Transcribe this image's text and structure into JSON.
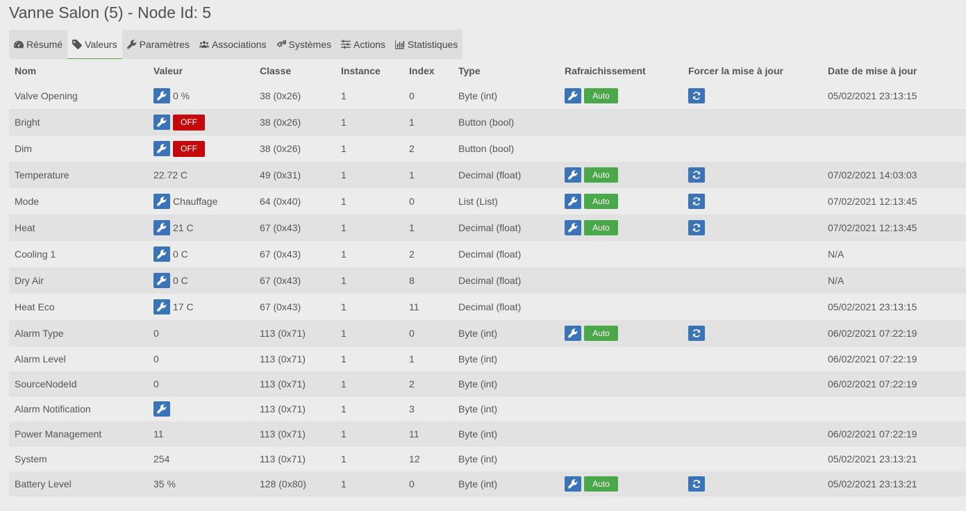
{
  "page_title": "Vanne Salon (5) - Node Id: 5",
  "tabs": [
    {
      "label": "Résumé",
      "icon": "dashboard-icon",
      "active": false
    },
    {
      "label": "Valeurs",
      "icon": "tag-icon",
      "active": true
    },
    {
      "label": "Paramètres",
      "icon": "wrench-icon",
      "active": false
    },
    {
      "label": "Associations",
      "icon": "users-icon",
      "active": false
    },
    {
      "label": "Systèmes",
      "icon": "cogs-icon",
      "active": false
    },
    {
      "label": "Actions",
      "icon": "sliders-icon",
      "active": false
    },
    {
      "label": "Statistiques",
      "icon": "bar-chart-icon",
      "active": false
    }
  ],
  "columns": [
    "Nom",
    "Valeur",
    "Classe",
    "Instance",
    "Index",
    "Type",
    "Rafraichissement",
    "Forcer la mise à jour",
    "Date de mise à jour"
  ],
  "auto_label": "Auto",
  "colors": {
    "primary": "#3a73b8",
    "success": "#4aa84a",
    "danger": "#c4080b"
  },
  "rows": [
    {
      "name": "Valve Opening",
      "editable": true,
      "value": "0 %",
      "badge": "",
      "class": "38 (0x26)",
      "instance": "1",
      "index": "0",
      "type": "Byte (int)",
      "refresh": true,
      "force": true,
      "date": "05/02/2021 23:13:15"
    },
    {
      "name": "Bright",
      "editable": true,
      "value": "",
      "badge": "OFF",
      "class": "38 (0x26)",
      "instance": "1",
      "index": "1",
      "type": "Button (bool)",
      "refresh": false,
      "force": false,
      "date": ""
    },
    {
      "name": "Dim",
      "editable": true,
      "value": "",
      "badge": "OFF",
      "class": "38 (0x26)",
      "instance": "1",
      "index": "2",
      "type": "Button (bool)",
      "refresh": false,
      "force": false,
      "date": ""
    },
    {
      "name": "Temperature",
      "editable": false,
      "value": "22.72 C",
      "badge": "",
      "class": "49 (0x31)",
      "instance": "1",
      "index": "1",
      "type": "Decimal (float)",
      "refresh": true,
      "force": true,
      "date": "07/02/2021 14:03:03"
    },
    {
      "name": "Mode",
      "editable": true,
      "value": "Chauffage",
      "badge": "",
      "class": "64 (0x40)",
      "instance": "1",
      "index": "0",
      "type": "List (List)",
      "refresh": true,
      "force": true,
      "date": "07/02/2021 12:13:45"
    },
    {
      "name": "Heat",
      "editable": true,
      "value": "21 C",
      "badge": "",
      "class": "67 (0x43)",
      "instance": "1",
      "index": "1",
      "type": "Decimal (float)",
      "refresh": true,
      "force": true,
      "date": "07/02/2021 12:13:45"
    },
    {
      "name": "Cooling 1",
      "editable": true,
      "value": "0 C",
      "badge": "",
      "class": "67 (0x43)",
      "instance": "1",
      "index": "2",
      "type": "Decimal (float)",
      "refresh": false,
      "force": false,
      "date": "N/A"
    },
    {
      "name": "Dry Air",
      "editable": true,
      "value": "0 C",
      "badge": "",
      "class": "67 (0x43)",
      "instance": "1",
      "index": "8",
      "type": "Decimal (float)",
      "refresh": false,
      "force": false,
      "date": "N/A"
    },
    {
      "name": "Heat Eco",
      "editable": true,
      "value": "17 C",
      "badge": "",
      "class": "67 (0x43)",
      "instance": "1",
      "index": "11",
      "type": "Decimal (float)",
      "refresh": false,
      "force": false,
      "date": "05/02/2021 23:13:15"
    },
    {
      "name": "Alarm Type",
      "editable": false,
      "value": "0",
      "badge": "",
      "class": "113 (0x71)",
      "instance": "1",
      "index": "0",
      "type": "Byte (int)",
      "refresh": true,
      "force": true,
      "date": "06/02/2021 07:22:19"
    },
    {
      "name": "Alarm Level",
      "editable": false,
      "value": "0",
      "badge": "",
      "class": "113 (0x71)",
      "instance": "1",
      "index": "1",
      "type": "Byte (int)",
      "refresh": false,
      "force": false,
      "date": "06/02/2021 07:22:19"
    },
    {
      "name": "SourceNodeId",
      "editable": false,
      "value": "0",
      "badge": "",
      "class": "113 (0x71)",
      "instance": "1",
      "index": "2",
      "type": "Byte (int)",
      "refresh": false,
      "force": false,
      "date": "06/02/2021 07:22:19"
    },
    {
      "name": "Alarm Notification",
      "editable": true,
      "value": "",
      "badge": "",
      "class": "113 (0x71)",
      "instance": "1",
      "index": "3",
      "type": "Byte (int)",
      "refresh": false,
      "force": false,
      "date": ""
    },
    {
      "name": "Power Management",
      "editable": false,
      "value": "11",
      "badge": "",
      "class": "113 (0x71)",
      "instance": "1",
      "index": "11",
      "type": "Byte (int)",
      "refresh": false,
      "force": false,
      "date": "06/02/2021 07:22:19"
    },
    {
      "name": "System",
      "editable": false,
      "value": "254",
      "badge": "",
      "class": "113 (0x71)",
      "instance": "1",
      "index": "12",
      "type": "Byte (int)",
      "refresh": false,
      "force": false,
      "date": "05/02/2021 23:13:21"
    },
    {
      "name": "Battery Level",
      "editable": false,
      "value": "35 %",
      "badge": "",
      "class": "128 (0x80)",
      "instance": "1",
      "index": "0",
      "type": "Byte (int)",
      "refresh": true,
      "force": true,
      "date": "05/02/2021 23:13:21"
    }
  ]
}
